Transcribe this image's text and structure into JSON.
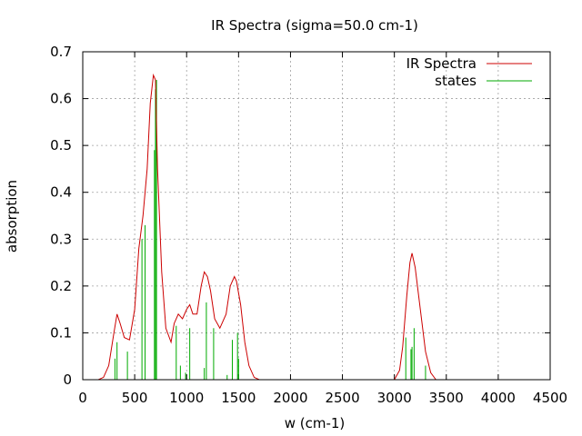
{
  "chart_data": {
    "type": "line",
    "title": "IR Spectra (sigma=50.0 cm-1)",
    "xlabel": "w (cm-1)",
    "ylabel": "absorption",
    "xlim": [
      0,
      4500
    ],
    "ylim": [
      0,
      0.7
    ],
    "x_ticks": [
      0,
      500,
      1000,
      1500,
      2000,
      2500,
      3000,
      3500,
      4000,
      4500
    ],
    "y_ticks": [
      0,
      0.1,
      0.2,
      0.3,
      0.4,
      0.5,
      0.6,
      0.7
    ],
    "grid": true,
    "legend_position": "top-right",
    "colors": {
      "spectrum": "#cc0000",
      "states": "#00aa00"
    },
    "series": [
      {
        "name": "IR Spectra",
        "style": "line",
        "x": [
          150,
          200,
          250,
          300,
          330,
          360,
          400,
          450,
          500,
          540,
          580,
          620,
          650,
          680,
          700,
          720,
          760,
          800,
          850,
          880,
          920,
          960,
          1000,
          1030,
          1060,
          1100,
          1140,
          1170,
          1200,
          1230,
          1270,
          1320,
          1380,
          1420,
          1460,
          1480,
          1520,
          1560,
          1600,
          1650,
          1700,
          3000,
          3050,
          3080,
          3120,
          3150,
          3170,
          3200,
          3250,
          3300,
          3350,
          3400
        ],
        "y": [
          0,
          0.005,
          0.03,
          0.1,
          0.14,
          0.12,
          0.09,
          0.085,
          0.15,
          0.28,
          0.35,
          0.45,
          0.59,
          0.65,
          0.64,
          0.45,
          0.23,
          0.11,
          0.08,
          0.12,
          0.14,
          0.13,
          0.15,
          0.16,
          0.14,
          0.14,
          0.2,
          0.23,
          0.22,
          0.19,
          0.13,
          0.11,
          0.14,
          0.2,
          0.22,
          0.21,
          0.16,
          0.08,
          0.03,
          0.005,
          0,
          0,
          0.02,
          0.07,
          0.18,
          0.25,
          0.27,
          0.24,
          0.15,
          0.06,
          0.015,
          0
        ]
      },
      {
        "name": "states",
        "style": "impulses",
        "x": [
          310,
          330,
          430,
          570,
          600,
          690,
          700,
          710,
          900,
          940,
          990,
          1030,
          1170,
          1190,
          1260,
          1390,
          1440,
          1490,
          1500,
          3110,
          3160,
          3170,
          3190,
          3300
        ],
        "y": [
          0.045,
          0.08,
          0.06,
          0.3,
          0.33,
          0.49,
          0.62,
          0.64,
          0.115,
          0.03,
          0.015,
          0.11,
          0.025,
          0.165,
          0.11,
          0.01,
          0.085,
          0.1,
          0.045,
          0.09,
          0.065,
          0.07,
          0.11,
          0.03
        ]
      }
    ]
  }
}
